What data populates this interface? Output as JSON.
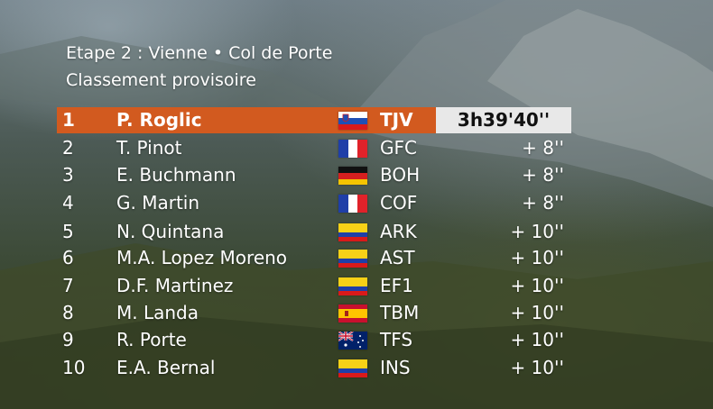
{
  "header": {
    "stage_line": "Etape 2 : Vienne • Col de Porte",
    "subtitle": "Classement provisoire"
  },
  "standings": [
    {
      "rank": "1",
      "rider": "P. Roglic",
      "flag": "slovenia-flag-icon",
      "team": "TJV",
      "time": "3h39'40''"
    },
    {
      "rank": "2",
      "rider": "T. Pinot",
      "flag": "france-flag-icon",
      "team": "GFC",
      "gap": "+ 8''"
    },
    {
      "rank": "3",
      "rider": "E. Buchmann",
      "flag": "germany-flag-icon",
      "team": "BOH",
      "gap": "+ 8''"
    },
    {
      "rank": "4",
      "rider": "G. Martin",
      "flag": "france-flag-icon",
      "team": "COF",
      "gap": "+ 8''"
    },
    {
      "rank": "5",
      "rider": "N. Quintana",
      "flag": "colombia-flag-icon",
      "team": "ARK",
      "gap": "+ 10''"
    },
    {
      "rank": "6",
      "rider": "M.A. Lopez Moreno",
      "flag": "colombia-flag-icon",
      "team": "AST",
      "gap": "+ 10''"
    },
    {
      "rank": "7",
      "rider": "D.F. Martinez",
      "flag": "colombia-flag-icon",
      "team": "EF1",
      "gap": "+ 10''"
    },
    {
      "rank": "8",
      "rider": "M. Landa",
      "flag": "spain-flag-icon",
      "team": "TBM",
      "gap": "+ 10''"
    },
    {
      "rank": "9",
      "rider": "R. Porte",
      "flag": "australia-flag-icon",
      "team": "TFS",
      "gap": "+ 10''"
    },
    {
      "rank": "10",
      "rider": "E.A. Bernal",
      "flag": "colombia-flag-icon",
      "team": "INS",
      "gap": "+ 10''"
    }
  ],
  "colors": {
    "leader_bar": "#d25a1f",
    "time_box": "#e8e8e8",
    "text": "#ffffff"
  }
}
